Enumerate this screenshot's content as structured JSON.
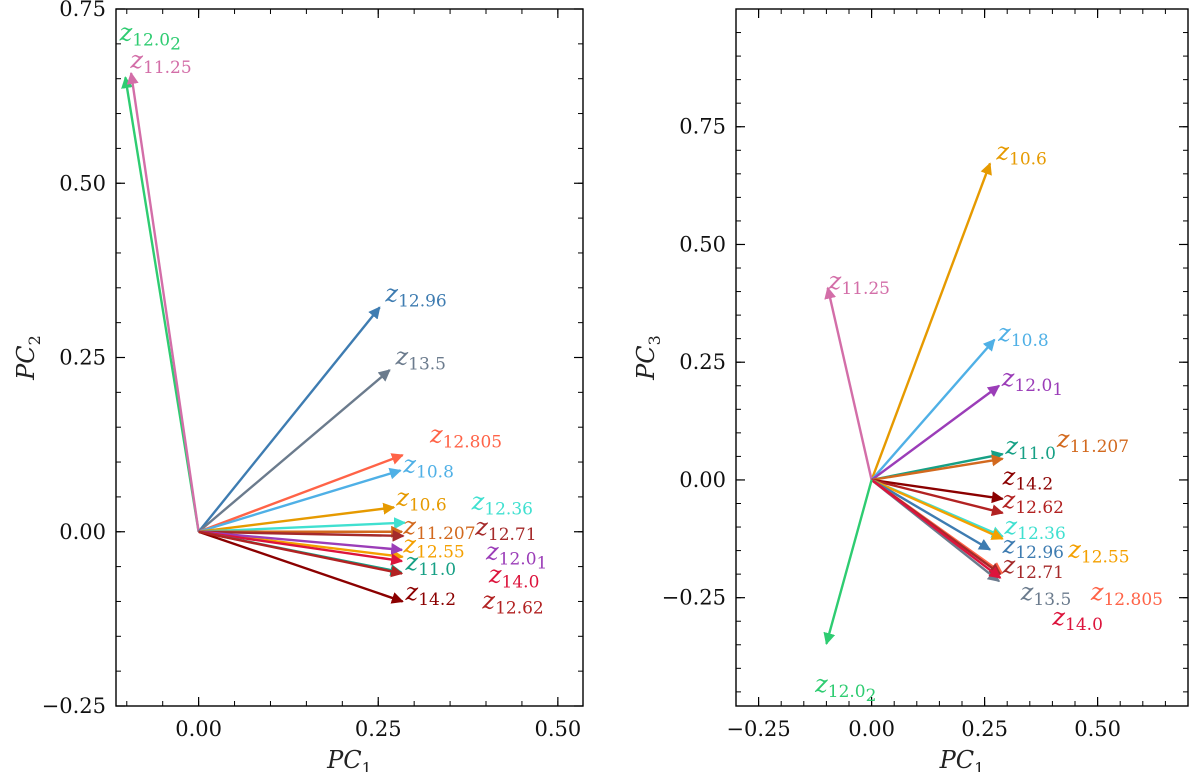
{
  "chart_data": [
    {
      "type": "biplot",
      "title": "",
      "xlabel": "PC1",
      "xlabel_main": "PC",
      "xlabel_sub": "1",
      "ylabel": "PC2",
      "ylabel_main": "PC",
      "ylabel_sub": "2",
      "xlim": [
        -0.115,
        0.535
      ],
      "ylim": [
        -0.25,
        0.75
      ],
      "xticks": [
        0.0,
        0.25,
        0.5
      ],
      "xtick_labels": [
        "0.00",
        "0.25",
        "0.50"
      ],
      "yticks": [
        -0.25,
        0.0,
        0.25,
        0.5,
        0.75
      ],
      "ytick_labels": [
        "−0.25",
        "0.00",
        "0.25",
        "0.50",
        "0.75"
      ],
      "grid": false,
      "vectors": [
        {
          "label": "z",
          "sub": "12.0",
          "subsub": "2",
          "color": "#2ecc71",
          "x": -0.102,
          "y": 0.652,
          "lx": -0.11,
          "ly": 0.705
        },
        {
          "label": "z",
          "sub": "11.25",
          "color": "#d36ea8",
          "x": -0.094,
          "y": 0.658,
          "lx": -0.095,
          "ly": 0.665
        },
        {
          "label": "z",
          "sub": "12.96",
          "color": "#3e7cb1",
          "x": 0.252,
          "y": 0.322,
          "lx": 0.26,
          "ly": 0.33
        },
        {
          "label": "z",
          "sub": "13.5",
          "color": "#6b7b8d",
          "x": 0.266,
          "y": 0.232,
          "lx": 0.274,
          "ly": 0.24
        },
        {
          "label": "z",
          "sub": "12.805",
          "color": "#ff6347",
          "x": 0.284,
          "y": 0.11,
          "lx": 0.322,
          "ly": 0.128
        },
        {
          "label": "z",
          "sub": "10.8",
          "color": "#4fb0e6",
          "x": 0.281,
          "y": 0.088,
          "lx": 0.285,
          "ly": 0.085
        },
        {
          "label": "z",
          "sub": "10.6",
          "color": "#e69a00",
          "x": 0.272,
          "y": 0.035,
          "lx": 0.275,
          "ly": 0.038
        },
        {
          "label": "z",
          "sub": "12.36",
          "color": "#40e0d0",
          "x": 0.287,
          "y": 0.013,
          "lx": 0.38,
          "ly": 0.032
        },
        {
          "label": "z",
          "sub": "11.207",
          "color": "#d2691e",
          "x": 0.283,
          "y": 0.0,
          "lx": 0.285,
          "ly": -0.003
        },
        {
          "label": "z",
          "sub": "12.71",
          "color": "#a52a2a",
          "x": 0.285,
          "y": -0.006,
          "lx": 0.385,
          "ly": -0.005
        },
        {
          "label": "z",
          "sub": "12.55",
          "color": "#f4a000",
          "x": 0.284,
          "y": -0.036,
          "lx": 0.285,
          "ly": -0.03
        },
        {
          "label": "z",
          "sub": "12.0",
          "subsub": "1",
          "color": "#9b3db8",
          "x": 0.283,
          "y": -0.026,
          "lx": 0.4,
          "ly": -0.04
        },
        {
          "label": "z",
          "sub": "14.0",
          "color": "#dc143c",
          "x": 0.283,
          "y": -0.042,
          "lx": 0.404,
          "ly": -0.073
        },
        {
          "label": "z",
          "sub": "11.0",
          "color": "#16a085",
          "x": 0.282,
          "y": -0.058,
          "lx": 0.288,
          "ly": -0.055
        },
        {
          "label": "z",
          "sub": "14.2",
          "color": "#8b0000",
          "x": 0.284,
          "y": -0.1,
          "lx": 0.288,
          "ly": -0.098
        },
        {
          "label": "z",
          "sub": "12.62",
          "color": "#b22222",
          "x": 0.283,
          "y": -0.06,
          "lx": 0.395,
          "ly": -0.11
        }
      ]
    },
    {
      "type": "biplot",
      "title": "",
      "xlabel": "PC1",
      "xlabel_main": "PC",
      "xlabel_sub": "1",
      "ylabel": "PC3",
      "ylabel_main": "PC",
      "ylabel_sub": "3",
      "xlim": [
        -0.3,
        0.7
      ],
      "ylim": [
        -0.48,
        1.0
      ],
      "xticks": [
        -0.25,
        0.0,
        0.25,
        0.5
      ],
      "xtick_labels": [
        "−0.25",
        "0.00",
        "0.25",
        "0.50"
      ],
      "yticks": [
        -0.25,
        0.0,
        0.25,
        0.5,
        0.75
      ],
      "ytick_labels": [
        "−0.25",
        "0.00",
        "0.25",
        "0.50",
        "0.75"
      ],
      "grid": false,
      "vectors": [
        {
          "label": "z",
          "sub": "10.6",
          "color": "#e69a00",
          "x": 0.262,
          "y": 0.672,
          "lx": 0.276,
          "ly": 0.68
        },
        {
          "label": "z",
          "sub": "11.25",
          "color": "#d36ea8",
          "x": -0.097,
          "y": 0.408,
          "lx": -0.095,
          "ly": 0.405
        },
        {
          "label": "z",
          "sub": "10.8",
          "color": "#4fb0e6",
          "x": 0.272,
          "y": 0.298,
          "lx": 0.28,
          "ly": 0.295
        },
        {
          "label": "z",
          "sub": "12.0",
          "subsub": "1",
          "color": "#9b3db8",
          "x": 0.282,
          "y": 0.2,
          "lx": 0.288,
          "ly": 0.2
        },
        {
          "label": "z",
          "sub": "11.0",
          "color": "#16a085",
          "x": 0.29,
          "y": 0.055,
          "lx": 0.296,
          "ly": 0.055
        },
        {
          "label": "z",
          "sub": "11.207",
          "color": "#d2691e",
          "x": 0.29,
          "y": 0.045,
          "lx": 0.41,
          "ly": 0.07
        },
        {
          "label": "z",
          "sub": "14.2",
          "color": "#8b0000",
          "x": 0.29,
          "y": -0.04,
          "lx": 0.29,
          "ly": -0.01
        },
        {
          "label": "z",
          "sub": "12.62",
          "color": "#b22222",
          "x": 0.29,
          "y": -0.07,
          "lx": 0.29,
          "ly": -0.06
        },
        {
          "label": "z",
          "sub": "12.36",
          "color": "#40e0d0",
          "x": 0.29,
          "y": -0.12,
          "lx": 0.294,
          "ly": -0.115
        },
        {
          "label": "z",
          "sub": "12.55",
          "color": "#f4a000",
          "x": 0.29,
          "y": -0.125,
          "lx": 0.435,
          "ly": -0.165
        },
        {
          "label": "z",
          "sub": "12.96",
          "color": "#3e7cb1",
          "x": 0.262,
          "y": -0.148,
          "lx": 0.29,
          "ly": -0.155
        },
        {
          "label": "z",
          "sub": "12.805",
          "color": "#ff6347",
          "x": 0.289,
          "y": -0.198,
          "lx": 0.485,
          "ly": -0.255
        },
        {
          "label": "z",
          "sub": "12.71",
          "color": "#a52a2a",
          "x": 0.285,
          "y": -0.2,
          "lx": 0.29,
          "ly": -0.198
        },
        {
          "label": "z",
          "sub": "13.5",
          "color": "#6b7b8d",
          "x": 0.282,
          "y": -0.215,
          "lx": 0.33,
          "ly": -0.255
        },
        {
          "label": "z",
          "sub": "14.0",
          "color": "#dc143c",
          "x": 0.285,
          "y": -0.208,
          "lx": 0.4,
          "ly": -0.308
        },
        {
          "label": "z",
          "sub": "12.0",
          "subsub": "2",
          "color": "#2ecc71",
          "x": -0.1,
          "y": -0.348,
          "lx": -0.125,
          "ly": -0.45
        }
      ]
    }
  ]
}
